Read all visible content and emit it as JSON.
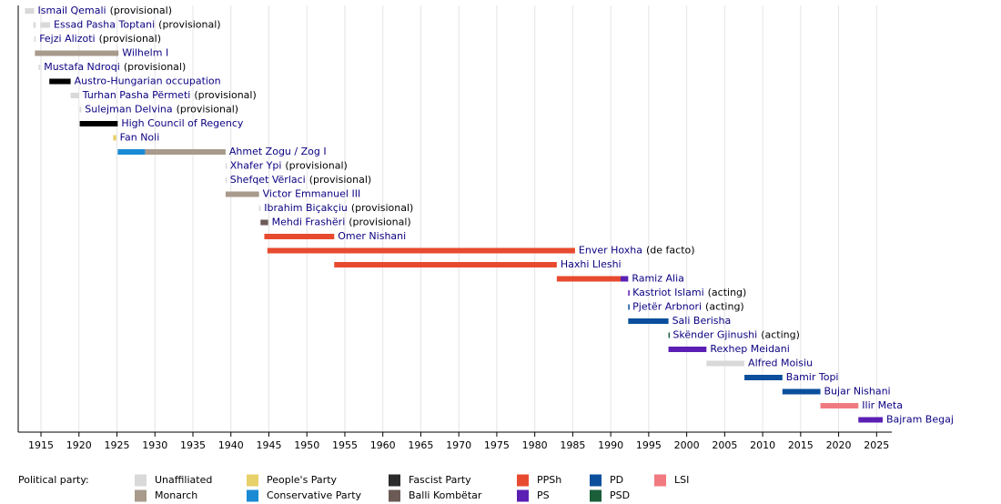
{
  "chart_data": {
    "type": "timeline",
    "xlim": [
      1912,
      2027
    ],
    "xticks": [
      1915,
      1920,
      1925,
      1930,
      1935,
      1940,
      1945,
      1950,
      1955,
      1960,
      1965,
      1970,
      1975,
      1980,
      1985,
      1990,
      1995,
      2000,
      2005,
      2010,
      2015,
      2020,
      2025
    ],
    "grid": true,
    "rows": [
      {
        "name": "Ismail Qemali",
        "note": "(provisional)",
        "segments": [
          {
            "start": 1912.9,
            "end": 1914.1,
            "color": "#d9d9d9"
          }
        ]
      },
      {
        "name": "Essad Pasha Toptani",
        "note": "(provisional)",
        "segments": [
          {
            "start": 1914.0,
            "end": 1914.3,
            "color": "#d9d9d9"
          },
          {
            "start": 1914.9,
            "end": 1916.2,
            "color": "#d9d9d9"
          }
        ]
      },
      {
        "name": "Fejzi Alizoti",
        "note": "(provisional)",
        "segments": [
          {
            "start": 1914.1,
            "end": 1914.3,
            "color": "#d9d9d9"
          }
        ]
      },
      {
        "name": "Wilhelm I",
        "segments": [
          {
            "start": 1914.2,
            "end": 1925.2,
            "color": "#a89a8c"
          }
        ]
      },
      {
        "name": "Mustafa Ndroqi",
        "note": "(provisional)",
        "segments": [
          {
            "start": 1914.7,
            "end": 1914.9,
            "color": "#d9d9d9"
          }
        ]
      },
      {
        "name": "Austro-Hungarian occupation",
        "segments": [
          {
            "start": 1916.1,
            "end": 1918.9,
            "color": "#000000"
          }
        ]
      },
      {
        "name": "Turhan Pasha Përmeti",
        "note": "(provisional)",
        "segments": [
          {
            "start": 1918.9,
            "end": 1920.0,
            "color": "#d9d9d9"
          }
        ]
      },
      {
        "name": "Sulejman Delvina",
        "note": "(provisional)",
        "segments": [
          {
            "start": 1920.1,
            "end": 1920.3,
            "color": "#d9d9d9"
          }
        ]
      },
      {
        "name": "High Council of Regency",
        "segments": [
          {
            "start": 1920.1,
            "end": 1925.1,
            "color": "#000000"
          }
        ]
      },
      {
        "name": "Fan Noli",
        "segments": [
          {
            "start": 1924.5,
            "end": 1924.9,
            "color": "#e8d06a"
          }
        ]
      },
      {
        "name": "Ahmet Zogu / Zog I",
        "segments": [
          {
            "start": 1925.1,
            "end": 1928.7,
            "color": "#1a8ad4"
          },
          {
            "start": 1928.7,
            "end": 1939.3,
            "color": "#a89a8c"
          }
        ]
      },
      {
        "name": "Xhafer Ypi",
        "note": "(provisional)",
        "segments": [
          {
            "start": 1939.3,
            "end": 1939.4,
            "color": "#d9d9d9"
          }
        ]
      },
      {
        "name": "Shefqet Vërlaci",
        "note": "(provisional)",
        "segments": [
          {
            "start": 1939.3,
            "end": 1939.4,
            "color": "#d9d9d9"
          }
        ]
      },
      {
        "name": "Victor Emmanuel III",
        "segments": [
          {
            "start": 1939.3,
            "end": 1943.7,
            "color": "#a89a8c"
          }
        ]
      },
      {
        "name": "Ibrahim Biçakçiu",
        "note": "(provisional)",
        "segments": [
          {
            "start": 1943.7,
            "end": 1943.9,
            "color": "#d9d9d9"
          }
        ]
      },
      {
        "name": "Mehdi Frashëri",
        "note": "(provisional)",
        "segments": [
          {
            "start": 1943.9,
            "end": 1944.9,
            "color": "#6b5a55"
          }
        ]
      },
      {
        "name": "Omer Nishani",
        "segments": [
          {
            "start": 1944.4,
            "end": 1953.6,
            "color": "#e84a2f"
          }
        ]
      },
      {
        "name": "Enver Hoxha",
        "note": "(de facto)",
        "segments": [
          {
            "start": 1944.8,
            "end": 1985.3,
            "color": "#e84a2f"
          }
        ]
      },
      {
        "name": "Haxhi Lleshi",
        "segments": [
          {
            "start": 1953.6,
            "end": 1982.9,
            "color": "#e84a2f"
          }
        ]
      },
      {
        "name": "Ramiz Alia",
        "segments": [
          {
            "start": 1982.9,
            "end": 1991.3,
            "color": "#e84a2f"
          },
          {
            "start": 1991.3,
            "end": 1992.3,
            "color": "#5b1fb3"
          }
        ]
      },
      {
        "name": "Kastriot Islami",
        "note": "(acting)",
        "segments": [
          {
            "start": 1992.3,
            "end": 1992.4,
            "color": "#5b1fb3"
          }
        ]
      },
      {
        "name": "Pjetër Arbnori",
        "note": "(acting)",
        "segments": [
          {
            "start": 1992.3,
            "end": 1992.4,
            "color": "#0b4f9c"
          }
        ]
      },
      {
        "name": "Sali Berisha",
        "segments": [
          {
            "start": 1992.3,
            "end": 1997.6,
            "color": "#0b4f9c"
          }
        ]
      },
      {
        "name": "Skënder Gjinushi",
        "note": "(acting)",
        "segments": [
          {
            "start": 1997.6,
            "end": 1997.7,
            "color": "#1a5e3a"
          }
        ]
      },
      {
        "name": "Rexhep Meidani",
        "segments": [
          {
            "start": 1997.6,
            "end": 2002.6,
            "color": "#5b1fb3"
          }
        ]
      },
      {
        "name": "Alfred Moisiu",
        "segments": [
          {
            "start": 2002.6,
            "end": 2007.6,
            "color": "#d9d9d9"
          }
        ]
      },
      {
        "name": "Bamir Topi",
        "segments": [
          {
            "start": 2007.6,
            "end": 2012.6,
            "color": "#0b4f9c"
          }
        ]
      },
      {
        "name": "Bujar Nishani",
        "segments": [
          {
            "start": 2012.6,
            "end": 2017.6,
            "color": "#0b4f9c"
          }
        ]
      },
      {
        "name": "Ilir Meta",
        "segments": [
          {
            "start": 2017.6,
            "end": 2022.6,
            "color": "#f07a80"
          }
        ]
      },
      {
        "name": "Bajram Begaj",
        "segments": [
          {
            "start": 2022.6,
            "end": 2025.8,
            "color": "#5b1fb3"
          }
        ]
      }
    ],
    "legend_title": "Political party:",
    "legend": [
      {
        "name": "Unaffiliated",
        "color": "#d9d9d9"
      },
      {
        "name": "Monarch",
        "color": "#a89a8c"
      },
      {
        "name": "People's Party",
        "color": "#e8d06a"
      },
      {
        "name": "Conservative Party",
        "color": "#1a8ad4"
      },
      {
        "name": "Fascist Party",
        "color": "#2b2b2b"
      },
      {
        "name": "Balli Kombëtar",
        "color": "#6b5a55"
      },
      {
        "name": "PPSh",
        "color": "#e84a2f"
      },
      {
        "name": "PS",
        "color": "#5b1fb3"
      },
      {
        "name": "PD",
        "color": "#0b4f9c"
      },
      {
        "name": "PSD",
        "color": "#1a5e3a"
      },
      {
        "name": "LSI",
        "color": "#f07a80"
      }
    ]
  }
}
